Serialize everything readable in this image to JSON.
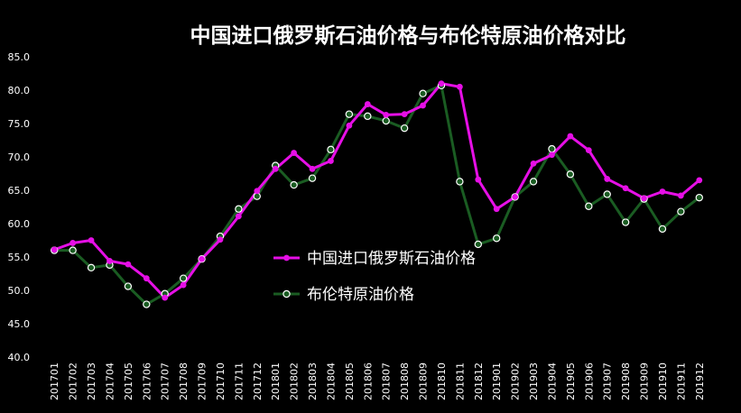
{
  "chart_data": {
    "type": "line",
    "title": "中国进口俄罗斯石油价格与布伦特原油价格对比",
    "xlabel": "",
    "ylabel": "",
    "ylim": [
      40,
      85
    ],
    "yticks": [
      "40.0",
      "45.0",
      "50.0",
      "55.0",
      "60.0",
      "65.0",
      "70.0",
      "75.0",
      "80.0",
      "85.0"
    ],
    "grid": false,
    "legend_position": "center",
    "x": [
      "201701",
      "201702",
      "201703",
      "201704",
      "201705",
      "201706",
      "201707",
      "201708",
      "201709",
      "201710",
      "201711",
      "201712",
      "201801",
      "201802",
      "201803",
      "201804",
      "201805",
      "201806",
      "201807",
      "201808",
      "201809",
      "201810",
      "201811",
      "201812",
      "201901",
      "201902",
      "201903",
      "201904",
      "201905",
      "201906",
      "201907",
      "201908",
      "201909",
      "201910",
      "201911",
      "201912"
    ],
    "series": [
      {
        "name": "中国进口俄罗斯石油价格",
        "color": "#e60fe6",
        "marker": "filled-circle",
        "values": [
          56.1,
          57.1,
          57.5,
          54.4,
          53.9,
          51.8,
          48.9,
          50.8,
          54.7,
          57.6,
          61.1,
          64.9,
          68.2,
          70.6,
          68.2,
          69.4,
          74.7,
          77.9,
          76.3,
          76.4,
          77.7,
          81.0,
          80.5,
          66.6,
          62.2,
          64.0,
          69.0,
          70.3,
          73.1,
          71.0,
          66.7,
          65.3,
          63.8,
          64.8,
          64.2,
          66.5
        ]
      },
      {
        "name": "布伦特原油价格",
        "color": "#1a5c22",
        "marker": "hollow-circle",
        "values": [
          56.0,
          56.0,
          53.4,
          53.8,
          50.6,
          47.9,
          49.5,
          51.8,
          54.7,
          58.1,
          62.2,
          64.1,
          68.7,
          65.8,
          66.8,
          71.1,
          76.4,
          76.1,
          75.4,
          74.3,
          79.5,
          80.7,
          66.3,
          56.9,
          57.8,
          64.0,
          66.3,
          71.2,
          67.4,
          62.6,
          64.4,
          60.2,
          63.7,
          59.2,
          61.8,
          63.9
        ]
      }
    ]
  }
}
